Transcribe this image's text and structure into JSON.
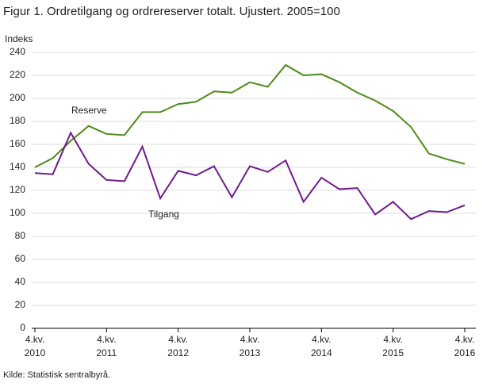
{
  "chart_data": {
    "type": "line",
    "title": "Figur 1. Ordretilgang og ordrereserver totalt. Ujustert. 2005=100",
    "y_label": "Indeks",
    "source": "Kilde: Statistisk sentralbyrå.",
    "categories": [
      "4.kv. 2010",
      null,
      null,
      null,
      "4.kv. 2011",
      null,
      null,
      null,
      "4.kv. 2012",
      null,
      null,
      null,
      "4.kv. 2013",
      null,
      null,
      null,
      "4.kv. 2014",
      null,
      null,
      null,
      "4.kv. 2015",
      null,
      null,
      null,
      "4.kv. 2016"
    ],
    "series": [
      {
        "name": "Reserve",
        "color": "#4e8c1a",
        "values": [
          140,
          148,
          163,
          176,
          169,
          168,
          188,
          188,
          195,
          197,
          206,
          205,
          214,
          210,
          229,
          220,
          221,
          214,
          205,
          198,
          189,
          175,
          152,
          147,
          143
        ]
      },
      {
        "name": "Tilgang",
        "color": "#6e1a8a",
        "values": [
          135,
          134,
          170,
          143,
          129,
          128,
          158,
          113,
          137,
          133,
          141,
          114,
          141,
          136,
          146,
          110,
          131,
          121,
          122,
          99,
          110,
          95,
          102,
          101,
          107
        ]
      }
    ],
    "ylim": [
      0,
      240
    ],
    "yticks": [
      0,
      20,
      40,
      60,
      80,
      100,
      120,
      140,
      160,
      180,
      200,
      220,
      240
    ],
    "grid": true
  }
}
